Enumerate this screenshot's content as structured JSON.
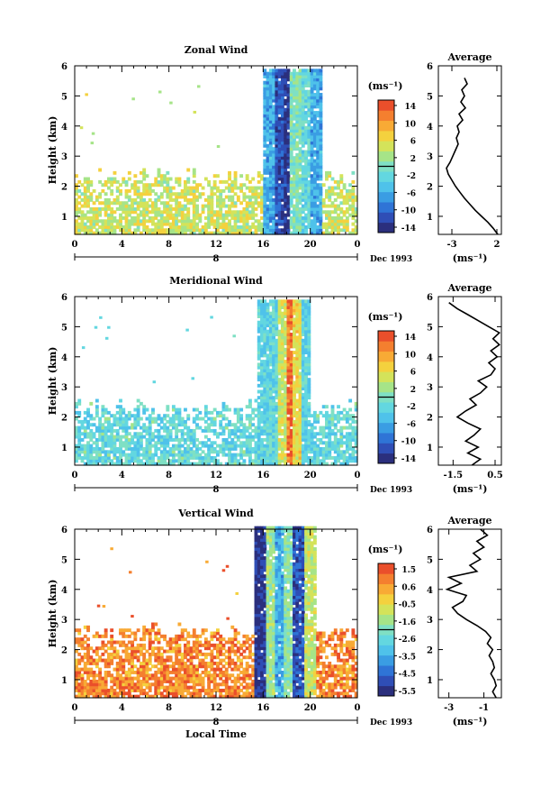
{
  "colors": {
    "scale": [
      "#2b2f7d",
      "#2f4eb6",
      "#2f74d6",
      "#3a9de3",
      "#4fc2ea",
      "#63d7e0",
      "#7fe0c4",
      "#a6e488",
      "#d4e35a",
      "#f4d13e",
      "#f8aa35",
      "#f47f2f",
      "#ea4f2b"
    ]
  },
  "chart_data": [
    {
      "type": "heatmap",
      "title": "Zonal Wind",
      "xlabel": "",
      "ylabel": "Height (km)",
      "x_ticks": [
        "0",
        "4",
        "8",
        "12",
        "16",
        "20",
        "0"
      ],
      "y_ticks": [
        "1",
        "2",
        "3",
        "4",
        "5",
        "6"
      ],
      "xlim": [
        0,
        24
      ],
      "ylim": [
        0.4,
        6
      ],
      "day_label": "8",
      "date_label": "Dec 1993",
      "colorbar": {
        "unit": "(ms⁻¹)",
        "tick_labels": [
          "14",
          "10",
          "6",
          "2",
          "-2",
          "-6",
          "-10",
          "-14"
        ],
        "range": [
          -15,
          15
        ]
      },
      "field": {
        "baseline": 4,
        "low_data_top": 2.3,
        "wet_start": 16.0,
        "wet_end": 21.0,
        "wet_top": 5.8,
        "wet_core": [
          {
            "x": 16.7,
            "value": -6
          },
          {
            "x": 17.2,
            "value": -11
          },
          {
            "x": 17.8,
            "value": -13
          },
          {
            "x": 18.5,
            "value": 0
          },
          {
            "x": 19.5,
            "value": -2
          },
          {
            "x": 20.3,
            "value": -6
          }
        ]
      },
      "profile": {
        "title": "Average",
        "xlabel": "(ms⁻¹)",
        "x_ticks": [
          "-3",
          "2"
        ],
        "xlim": [
          -4.5,
          2.5
        ],
        "heights": [
          0.4,
          0.6,
          0.8,
          1.0,
          1.2,
          1.4,
          1.6,
          1.8,
          2.0,
          2.2,
          2.4,
          2.6,
          2.8,
          3.0,
          3.2,
          3.4,
          3.6,
          3.8,
          4.0,
          4.2,
          4.4,
          4.6,
          4.8,
          5.0,
          5.2,
          5.4,
          5.6
        ],
        "values": [
          2.1,
          1.6,
          1.0,
          0.3,
          -0.4,
          -1.0,
          -1.6,
          -2.1,
          -2.6,
          -3.0,
          -3.4,
          -3.6,
          -3.2,
          -2.9,
          -2.6,
          -2.3,
          -2.5,
          -2.2,
          -2.4,
          -1.8,
          -2.2,
          -1.5,
          -2.0,
          -1.6,
          -1.9,
          -1.3,
          -1.6
        ]
      }
    },
    {
      "type": "heatmap",
      "title": "Meridional Wind",
      "xlabel": "",
      "ylabel": "Height (km)",
      "x_ticks": [
        "0",
        "4",
        "8",
        "12",
        "16",
        "20",
        "0"
      ],
      "y_ticks": [
        "1",
        "2",
        "3",
        "4",
        "5",
        "6"
      ],
      "xlim": [
        0,
        24
      ],
      "ylim": [
        0.4,
        6
      ],
      "day_label": "8",
      "date_label": "Dec 1993",
      "colorbar": {
        "unit": "(ms⁻¹)",
        "tick_labels": [
          "14",
          "10",
          "6",
          "2",
          "-2",
          "-6",
          "-10",
          "-14"
        ],
        "range": [
          -15,
          15
        ]
      },
      "field": {
        "baseline": -2,
        "low_data_top": 2.3,
        "wet_start": 15.5,
        "wet_end": 20.0,
        "wet_top": 5.8,
        "wet_core": [
          {
            "x": 16.0,
            "value": -3
          },
          {
            "x": 16.8,
            "value": -2
          },
          {
            "x": 17.5,
            "value": 4
          },
          {
            "x": 18.1,
            "value": 12
          },
          {
            "x": 18.7,
            "value": 6
          },
          {
            "x": 19.5,
            "value": -3
          }
        ]
      },
      "profile": {
        "title": "Average",
        "xlabel": "(ms⁻¹)",
        "x_ticks": [
          "-1.5",
          "0.5"
        ],
        "xlim": [
          -2.2,
          0.8
        ],
        "heights": [
          0.4,
          0.6,
          0.8,
          1.0,
          1.2,
          1.4,
          1.6,
          1.8,
          2.0,
          2.2,
          2.4,
          2.6,
          2.8,
          3.0,
          3.2,
          3.4,
          3.6,
          3.8,
          4.0,
          4.2,
          4.4,
          4.6,
          4.8,
          5.0,
          5.2,
          5.4,
          5.6,
          5.8
        ],
        "values": [
          -0.6,
          -0.2,
          -0.8,
          -0.3,
          -0.9,
          -0.5,
          -0.2,
          -0.8,
          -1.3,
          -0.9,
          -0.4,
          -0.7,
          -0.2,
          0.1,
          -0.3,
          0.3,
          0.5,
          0.2,
          0.6,
          0.3,
          0.7,
          0.4,
          0.7,
          0.2,
          -0.3,
          -0.8,
          -1.3,
          -1.7
        ]
      }
    },
    {
      "type": "heatmap",
      "title": "Vertical Wind",
      "xlabel": "Local Time",
      "ylabel": "Height (km)",
      "x_ticks": [
        "0",
        "4",
        "8",
        "12",
        "16",
        "20",
        "0"
      ],
      "y_ticks": [
        "1",
        "2",
        "3",
        "4",
        "5",
        "6"
      ],
      "xlim": [
        0,
        24
      ],
      "ylim": [
        0.4,
        6
      ],
      "day_label": "8",
      "date_label": "Dec 1993",
      "colorbar": {
        "unit": "(ms⁻¹)",
        "tick_labels": [
          "1.5",
          "0.6",
          "-0.5",
          "-1.6",
          "-2.6",
          "-3.5",
          "-4.5",
          "-5.5"
        ],
        "range": [
          -6,
          2
        ]
      },
      "field": {
        "baseline": 0.9,
        "low_data_top": 2.6,
        "wet_start": 15.2,
        "wet_end": 20.5,
        "wet_top": 6.0,
        "wet_core": [
          {
            "x": 15.5,
            "value": -5.5
          },
          {
            "x": 16.5,
            "value": -1.5
          },
          {
            "x": 17.2,
            "value": -3.5
          },
          {
            "x": 18.0,
            "value": -1.8
          },
          {
            "x": 18.7,
            "value": -5.0
          },
          {
            "x": 19.8,
            "value": -1.0
          }
        ]
      },
      "profile": {
        "title": "Average",
        "xlabel": "(ms⁻¹)",
        "x_ticks": [
          "-3",
          "-1"
        ],
        "xlim": [
          -3.6,
          0.0
        ],
        "heights": [
          0.4,
          0.6,
          0.8,
          1.0,
          1.2,
          1.4,
          1.6,
          1.8,
          2.0,
          2.2,
          2.4,
          2.6,
          2.8,
          3.0,
          3.2,
          3.4,
          3.6,
          3.8,
          4.0,
          4.2,
          4.4,
          4.6,
          4.8,
          5.0,
          5.2,
          5.4,
          5.6,
          5.8,
          6.0
        ],
        "values": [
          -0.3,
          -0.5,
          -0.3,
          -0.4,
          -0.6,
          -0.4,
          -0.5,
          -0.7,
          -0.5,
          -0.8,
          -0.6,
          -0.9,
          -1.4,
          -2.0,
          -2.5,
          -2.8,
          -2.2,
          -2.0,
          -3.1,
          -2.3,
          -3.0,
          -1.4,
          -1.8,
          -1.2,
          -1.6,
          -1.0,
          -1.4,
          -0.8,
          -1.2
        ]
      }
    }
  ]
}
